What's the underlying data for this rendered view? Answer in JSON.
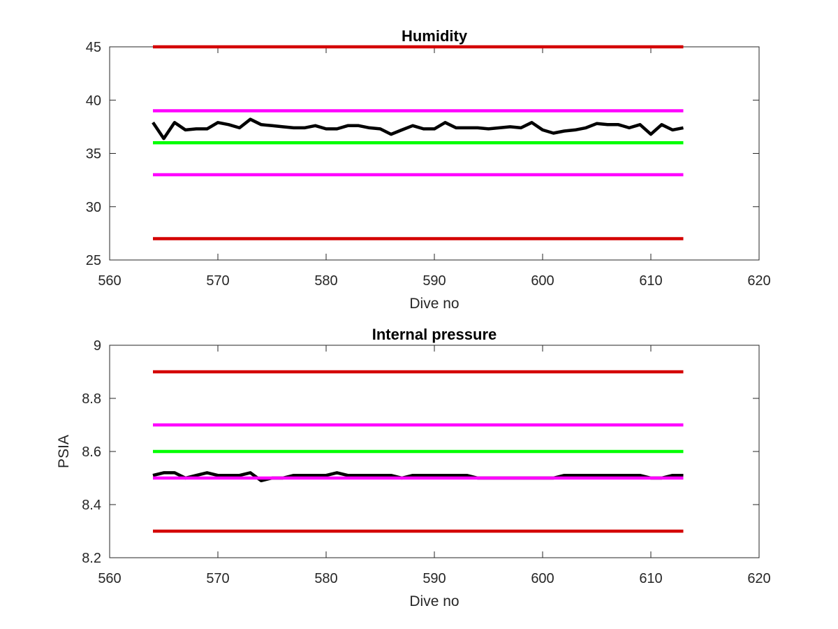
{
  "colors": {
    "limit_red": "#d40000",
    "limit_magenta": "#ff00ff",
    "target_green": "#00ff00",
    "data_black": "#000000",
    "axis": "#262626"
  },
  "chart_data": [
    {
      "type": "line",
      "title": "Humidity",
      "xlabel": "Dive no",
      "ylabel": "",
      "xlim": [
        560,
        620
      ],
      "ylim": [
        25,
        45
      ],
      "xticks": [
        560,
        570,
        580,
        590,
        600,
        610,
        620
      ],
      "yticks": [
        25,
        30,
        35,
        40,
        45
      ],
      "grid": false,
      "series": [
        {
          "color": "#d40000",
          "style": "constant",
          "x": [
            564,
            613
          ],
          "y": [
            45,
            45
          ]
        },
        {
          "color": "#ff00ff",
          "style": "constant",
          "x": [
            564,
            613
          ],
          "y": [
            39,
            39
          ]
        },
        {
          "color": "#00ff00",
          "style": "constant",
          "x": [
            564,
            613
          ],
          "y": [
            36,
            36
          ]
        },
        {
          "color": "#ff00ff",
          "style": "constant",
          "x": [
            564,
            613
          ],
          "y": [
            33,
            33
          ]
        },
        {
          "color": "#d40000",
          "style": "constant",
          "x": [
            564,
            613
          ],
          "y": [
            27,
            27
          ]
        },
        {
          "color": "#000000",
          "style": "data",
          "x": [
            564,
            565,
            566,
            567,
            568,
            569,
            570,
            571,
            572,
            573,
            574,
            575,
            576,
            577,
            578,
            579,
            580,
            581,
            582,
            583,
            584,
            585,
            586,
            587,
            588,
            589,
            590,
            591,
            592,
            593,
            594,
            595,
            596,
            597,
            598,
            599,
            600,
            601,
            602,
            603,
            604,
            605,
            606,
            607,
            608,
            609,
            610,
            611,
            612,
            613
          ],
          "y": [
            37.9,
            36.4,
            37.9,
            37.2,
            37.3,
            37.3,
            37.9,
            37.7,
            37.4,
            38.2,
            37.7,
            37.6,
            37.5,
            37.4,
            37.4,
            37.6,
            37.3,
            37.3,
            37.6,
            37.6,
            37.4,
            37.3,
            36.8,
            37.2,
            37.6,
            37.3,
            37.3,
            37.9,
            37.4,
            37.4,
            37.4,
            37.3,
            37.4,
            37.5,
            37.4,
            37.9,
            37.2,
            36.9,
            37.1,
            37.2,
            37.4,
            37.8,
            37.7,
            37.7,
            37.4,
            37.7,
            36.8,
            37.7,
            37.2,
            37.4
          ]
        }
      ]
    },
    {
      "type": "line",
      "title": "Internal pressure",
      "xlabel": "Dive no",
      "ylabel": "PSIA",
      "xlim": [
        560,
        620
      ],
      "ylim": [
        8.2,
        9
      ],
      "xticks": [
        560,
        570,
        580,
        590,
        600,
        610,
        620
      ],
      "yticks": [
        8.2,
        8.4,
        8.6,
        8.8,
        9
      ],
      "grid": false,
      "series": [
        {
          "color": "#d40000",
          "style": "constant",
          "x": [
            564,
            613
          ],
          "y": [
            8.9,
            8.9
          ]
        },
        {
          "color": "#ff00ff",
          "style": "constant",
          "x": [
            564,
            613
          ],
          "y": [
            8.7,
            8.7
          ]
        },
        {
          "color": "#00ff00",
          "style": "constant",
          "x": [
            564,
            613
          ],
          "y": [
            8.6,
            8.6
          ]
        },
        {
          "color": "#000000",
          "style": "data",
          "x": [
            564,
            565,
            566,
            567,
            568,
            569,
            570,
            571,
            572,
            573,
            574,
            575,
            576,
            577,
            578,
            579,
            580,
            581,
            582,
            583,
            584,
            585,
            586,
            587,
            588,
            589,
            590,
            591,
            592,
            593,
            594,
            595,
            596,
            597,
            598,
            599,
            600,
            601,
            602,
            603,
            604,
            605,
            606,
            607,
            608,
            609,
            610,
            611,
            612,
            613
          ],
          "y": [
            8.51,
            8.52,
            8.52,
            8.5,
            8.51,
            8.52,
            8.51,
            8.51,
            8.51,
            8.52,
            8.49,
            8.5,
            8.5,
            8.51,
            8.51,
            8.51,
            8.51,
            8.52,
            8.51,
            8.51,
            8.51,
            8.51,
            8.51,
            8.5,
            8.51,
            8.51,
            8.51,
            8.51,
            8.51,
            8.51,
            8.5,
            8.5,
            8.5,
            8.5,
            8.5,
            8.5,
            8.5,
            8.5,
            8.51,
            8.51,
            8.51,
            8.51,
            8.51,
            8.51,
            8.51,
            8.51,
            8.5,
            8.5,
            8.51,
            8.51
          ]
        },
        {
          "color": "#ff00ff",
          "style": "constant",
          "x": [
            564,
            613
          ],
          "y": [
            8.5,
            8.5
          ]
        },
        {
          "color": "#d40000",
          "style": "constant",
          "x": [
            564,
            613
          ],
          "y": [
            8.3,
            8.3
          ]
        }
      ]
    }
  ]
}
